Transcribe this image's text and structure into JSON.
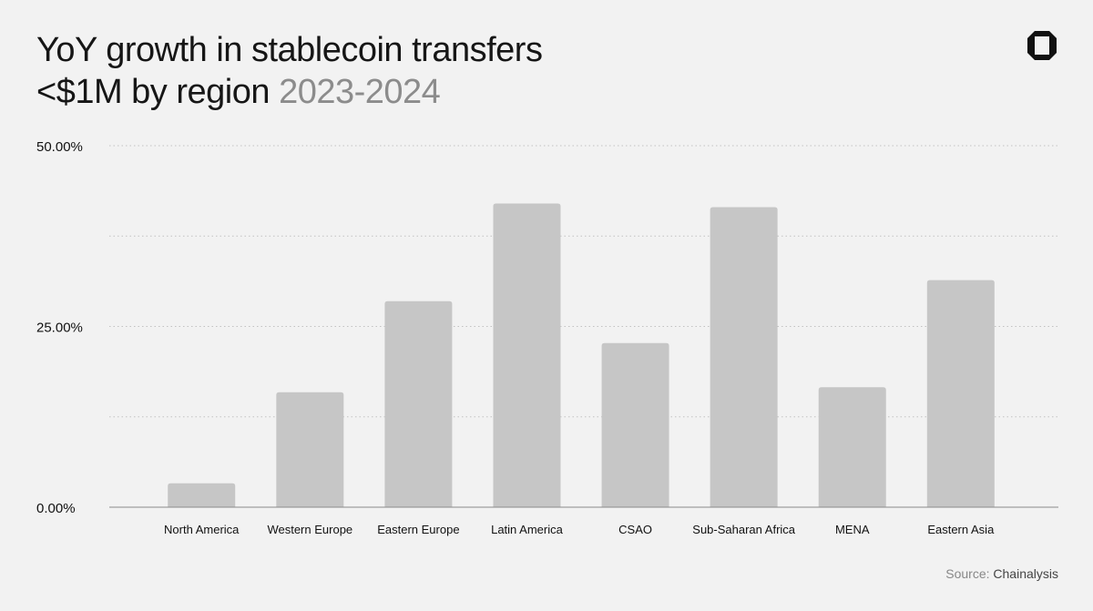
{
  "header": {
    "title_line1": "YoY growth in stablecoin transfers",
    "title_line2": "<$1M by region",
    "title_years": "2023-2024"
  },
  "logo": {
    "icon": "chainalysis-logo-icon",
    "color": "#111111"
  },
  "footer": {
    "source_label": "Source:",
    "source_value": "Chainalysis"
  },
  "colors": {
    "bar": "#c6c6c6",
    "grid": "#c2c2c2",
    "axis": "#8a8a8a",
    "background": "#f2f2f2"
  },
  "chart_data": {
    "type": "bar",
    "title": "YoY growth in stablecoin transfers <$1M by region 2023-2024",
    "xlabel": "",
    "ylabel": "",
    "categories": [
      "North America",
      "Western Europe",
      "Eastern Europe",
      "Latin America",
      "CSAO",
      "Sub-Saharan Africa",
      "MENA",
      "Eastern Asia"
    ],
    "values": [
      3.3,
      15.9,
      28.5,
      42.0,
      22.7,
      41.5,
      16.6,
      31.4
    ],
    "unit": "%",
    "ylim": [
      0,
      50
    ],
    "yticks": [
      0,
      25,
      50
    ],
    "ytick_labels": [
      "0.00%",
      "25.00%",
      "50.00%"
    ],
    "gridlines": [
      12.5,
      25,
      37.5,
      50
    ],
    "grid": true,
    "legend": "none"
  }
}
